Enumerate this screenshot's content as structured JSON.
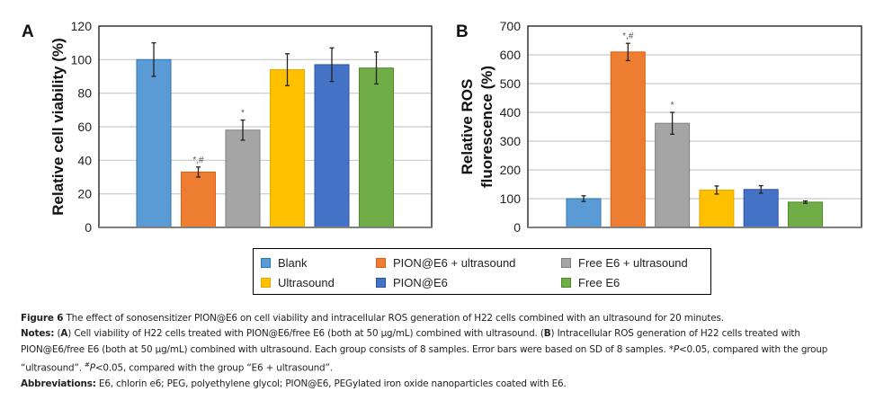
{
  "chart_data": [
    {
      "type": "bar",
      "panel": "A",
      "title": "",
      "xlabel": "",
      "ylabel": "Relative cell viability (%)",
      "ylim": [
        0,
        120
      ],
      "yticks": [
        0,
        20,
        40,
        60,
        80,
        100,
        120
      ],
      "grid": true,
      "categories": [
        "Blank",
        "PION@E6 + ultrasound",
        "Free E6 + ultrasound",
        "Ultrasound",
        "PION@E6",
        "Free E6"
      ],
      "values": [
        100,
        33,
        58,
        94,
        97,
        95
      ],
      "errors": [
        10,
        3,
        6,
        9.5,
        10,
        9.5
      ],
      "annotations": [
        "",
        "*,#",
        "*",
        "",
        "",
        ""
      ]
    },
    {
      "type": "bar",
      "panel": "B",
      "title": "",
      "xlabel": "",
      "ylabel": "Relative ROS fluorescence (%)",
      "ylabel_lines": [
        "Relative ROS",
        "fluorescence (%)"
      ],
      "ylim": [
        0,
        700
      ],
      "yticks": [
        0,
        100,
        200,
        300,
        400,
        500,
        600,
        700
      ],
      "grid": true,
      "categories": [
        "Blank",
        "PION@E6 + ultrasound",
        "Free E6 + ultrasound",
        "Ultrasound",
        "PION@E6",
        "Free E6"
      ],
      "values": [
        100,
        610,
        362,
        130,
        132,
        88
      ],
      "errors": [
        10,
        30,
        38,
        14,
        13,
        4
      ],
      "annotations": [
        "",
        "*,#",
        "*",
        "",
        "",
        ""
      ]
    }
  ],
  "series_colors": {
    "Blank": {
      "fill": "#5b9bd5",
      "stroke": "#2e75b6"
    },
    "PION@E6 + ultrasound": {
      "fill": "#ed7d31",
      "stroke": "#e05d12"
    },
    "Free E6 + ultrasound": {
      "fill": "#a5a5a5",
      "stroke": "#7f7f7f"
    },
    "Ultrasound": {
      "fill": "#ffc000",
      "stroke": "#e6a800"
    },
    "PION@E6": {
      "fill": "#4472c4",
      "stroke": "#2f52a0"
    },
    "Free E6": {
      "fill": "#70ad47",
      "stroke": "#4e8a2b"
    }
  },
  "legend": {
    "items": [
      {
        "label": "Blank",
        "fill": "#5b9bd5",
        "stroke": "#2e75b6"
      },
      {
        "label": "PION@E6 + ultrasound",
        "fill": "#ed7d31",
        "stroke": "#e05d12"
      },
      {
        "label": "Free E6 + ultrasound",
        "fill": "#a5a5a5",
        "stroke": "#7f7f7f"
      },
      {
        "label": "Ultrasound",
        "fill": "#ffc000",
        "stroke": "#e6a800"
      },
      {
        "label": "PION@E6",
        "fill": "#4472c4",
        "stroke": "#2f52a0"
      },
      {
        "label": "Free E6",
        "fill": "#70ad47",
        "stroke": "#4e8a2b"
      }
    ]
  },
  "caption": {
    "figure_label": "Figure 6",
    "figure_text": " The effect of sonosensitizer PION@E6 on cell viability and intracellular ROS generation of H22 cells combined with an ultrasound for 20 minutes.",
    "notes_label": "Notes:",
    "notes_a_open": " (",
    "notes_a_letter": "A",
    "notes_a_text": ") Cell viability of H22 cells treated with PION@E6/free E6 (both at 50 µg/mL) combined with ultrasound. (",
    "notes_b_letter": "B",
    "notes_b_text": ") Intracellular ROS generation of H22 cells treated with PION@E6/free E6 (both at 50 µg/mL) combined with ultrasound. Each group consists of 8 samples. Error bars were based on SD of 8 samples. *",
    "notes_p1": "P",
    "notes_text2": "<0.05, compared with the group “ultrasound”. ",
    "notes_hash": "#",
    "notes_p2": "P",
    "notes_text3": "<0.05, compared with the group “E6 + ultrasound”.",
    "abbrev_label": "Abbreviations:",
    "abbrev_text": " E6, chlorin e6; PEG, polyethylene glycol; PION@E6, PEGylated iron oxide nanoparticles coated with E6."
  }
}
